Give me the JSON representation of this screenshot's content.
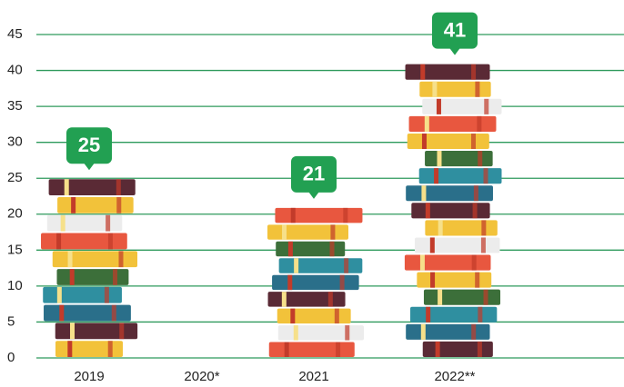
{
  "chart_data": {
    "type": "bar",
    "categories": [
      "2019",
      "2020*",
      "2021",
      "2022**"
    ],
    "values": [
      25,
      null,
      21,
      41
    ],
    "ylim": [
      0,
      45
    ],
    "yticks": [
      0,
      5,
      10,
      15,
      20,
      25,
      30,
      35,
      40,
      45
    ],
    "grid": true,
    "grid_color": "#2e9a5c",
    "label_color": "#22a052"
  }
}
